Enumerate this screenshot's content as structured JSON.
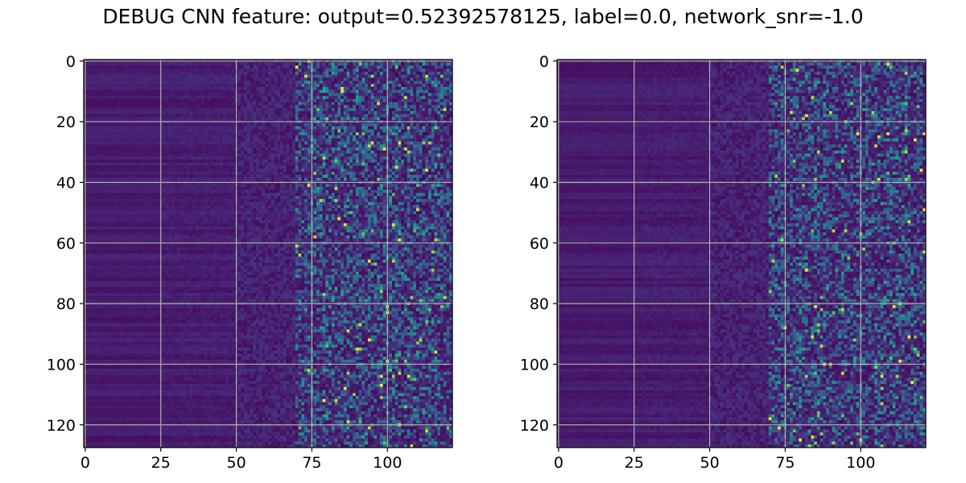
{
  "title": "DEBUG CNN feature: output=0.52392578125, label=0.0, network_snr=-1.0",
  "chart_data": [
    {
      "type": "heatmap",
      "title": "",
      "xlabel": "",
      "ylabel": "",
      "n_cols": 122,
      "n_rows": 128,
      "xlim": [
        -0.5,
        121.5
      ],
      "ylim": [
        127.5,
        -0.5
      ],
      "x_ticks": [
        0,
        25,
        50,
        75,
        100
      ],
      "y_ticks": [
        0,
        20,
        40,
        60,
        80,
        100,
        120
      ],
      "grid": true,
      "colormap": "viridis",
      "seed": 17
    },
    {
      "type": "heatmap",
      "title": "",
      "xlabel": "",
      "ylabel": "",
      "n_cols": 122,
      "n_rows": 128,
      "xlim": [
        -0.5,
        121.5
      ],
      "ylim": [
        127.5,
        -0.5
      ],
      "x_ticks": [
        0,
        25,
        50,
        75,
        100
      ],
      "y_ticks": [
        0,
        20,
        40,
        60,
        80,
        100,
        120
      ],
      "grid": true,
      "colormap": "viridis",
      "seed": 91
    }
  ],
  "colors": {
    "grid": "#b0b0b0",
    "axis": "#000000",
    "background": "#440154"
  }
}
